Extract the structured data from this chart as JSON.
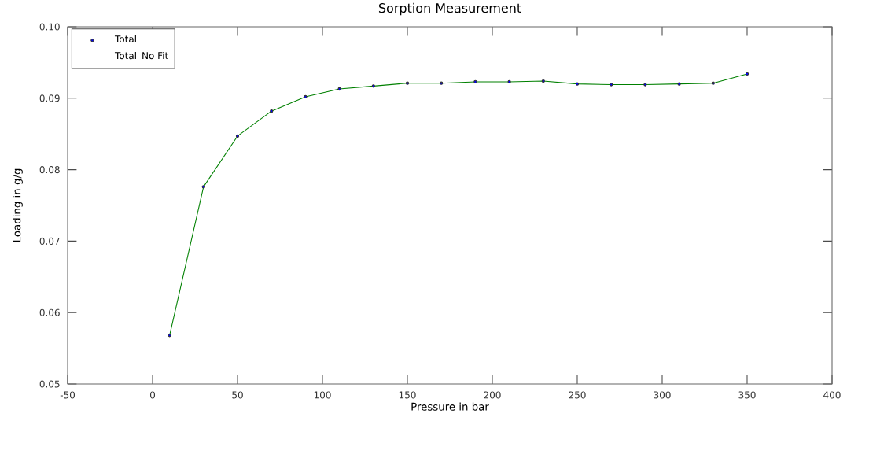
{
  "chart_data": {
    "type": "line",
    "title": "Sorption Measurement",
    "xlabel": "Pressure in bar",
    "ylabel": "Loading in g/g",
    "x": [
      10,
      30,
      50,
      70,
      90,
      110,
      130,
      150,
      170,
      190,
      210,
      230,
      250,
      270,
      290,
      310,
      330,
      350
    ],
    "series": [
      {
        "name": "Total",
        "type": "scatter",
        "marker": "circle",
        "color": "#0000ff",
        "values": [
          0.0568,
          0.0776,
          0.0847,
          0.0882,
          0.0902,
          0.0913,
          0.0917,
          0.0921,
          0.0921,
          0.0923,
          0.0923,
          0.0924,
          0.092,
          0.0919,
          0.0919,
          0.092,
          0.0921,
          0.0934
        ]
      },
      {
        "name": "Total_No Fit",
        "color": "#008000",
        "values": [
          0.0568,
          0.0776,
          0.0847,
          0.0882,
          0.0902,
          0.0913,
          0.0917,
          0.0921,
          0.0921,
          0.0923,
          0.0923,
          0.0924,
          0.092,
          0.0919,
          0.0919,
          0.092,
          0.0921,
          0.0934
        ]
      }
    ],
    "xlim": [
      -50,
      400
    ],
    "xticks": [
      -50,
      0,
      50,
      100,
      150,
      200,
      250,
      300,
      350,
      400
    ],
    "ylim": [
      0.05,
      0.1
    ],
    "yticks": [
      {
        "value": 0.05,
        "label": "0.05"
      },
      {
        "value": 0.06,
        "label": "0.06"
      },
      {
        "value": 0.07,
        "label": "0.07"
      },
      {
        "value": 0.08,
        "label": "0.08"
      },
      {
        "value": 0.09,
        "label": "0.09"
      },
      {
        "value": 0.1,
        "label": "0.10"
      }
    ],
    "grid": false,
    "legend": "top left"
  }
}
